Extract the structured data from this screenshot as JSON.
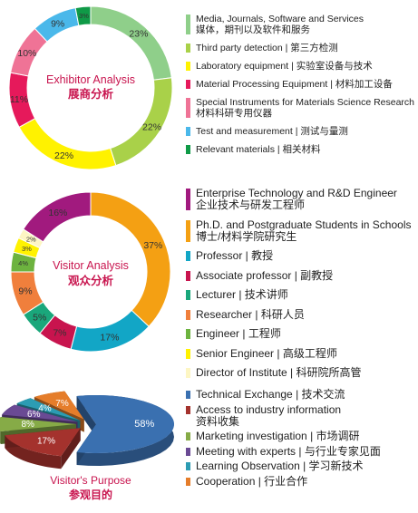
{
  "chart_data": [
    {
      "type": "pie",
      "variant": "donut",
      "title": "Exhibitor Analysis",
      "subtitle": "展商分析",
      "start": "top",
      "direction": "clockwise",
      "legend_position": "right",
      "series": [
        {
          "en": "Media, Journals, Software and Services",
          "zh": "媒体，期刊以及软件和服务",
          "value": 23,
          "label": "23%",
          "color": "#8fcf8a"
        },
        {
          "en": "Third party detection | 第三方检测",
          "zh": "",
          "value": 22,
          "label": "22%",
          "color": "#a9d149"
        },
        {
          "en": "Laboratory equipment | 实验室设备与技术",
          "zh": "",
          "value": 22,
          "label": "22%",
          "color": "#fff200"
        },
        {
          "en": "Material Processing Equipment | 材料加工设备",
          "zh": "",
          "value": 11,
          "label": "11%",
          "color": "#e6195b"
        },
        {
          "en": "Special Instruments for Materials Science Research",
          "zh": "材料科研专用仪器",
          "value": 10,
          "label": "10%",
          "color": "#ef7396"
        },
        {
          "en": "Test and measurement | 测试与量测",
          "zh": "",
          "value": 9,
          "label": "9%",
          "color": "#4ab8ea"
        },
        {
          "en": "Relevant materials | 相关材料",
          "zh": "",
          "value": 3,
          "label": "3%",
          "color": "#0f9a47"
        }
      ]
    },
    {
      "type": "pie",
      "variant": "donut",
      "title": "Visitor Analysis",
      "subtitle": "观众分析",
      "start": "top",
      "direction": "clockwise",
      "legend_position": "right",
      "series": [
        {
          "en": "Ph.D. and Postgraduate Students in Schools",
          "zh": "博士/材料学院研究生",
          "value": 37,
          "label": "37%",
          "color": "#f4a013"
        },
        {
          "en": "Professor | 教授",
          "zh": "",
          "value": 17,
          "label": "17%",
          "color": "#12a6c6"
        },
        {
          "en": "Associate professor | 副教授",
          "zh": "",
          "value": 7,
          "label": "7%",
          "color": "#c8144e"
        },
        {
          "en": "Lecturer | 技术讲师",
          "zh": "",
          "value": 5,
          "label": "5%",
          "color": "#1aa77b"
        },
        {
          "en": "Researcher | 科研人员",
          "zh": "",
          "value": 9,
          "label": "9%",
          "color": "#f07f3c"
        },
        {
          "en": "Engineer | 工程师",
          "zh": "",
          "value": 4,
          "label": "4%",
          "color": "#6db33f"
        },
        {
          "en": "Senior Engineer | 高级工程师",
          "zh": "",
          "value": 3,
          "label": "3%",
          "color": "#fff200"
        },
        {
          "en": "Director of Institute | 科研院所高管",
          "zh": "",
          "value": 2,
          "label": "2%",
          "color": "#fdf6c3"
        },
        {
          "en": "Enterprise Technology and R&D Engineer",
          "zh": "企业技术与研发工程师",
          "value": 16,
          "label": "16%",
          "color": "#a11a7e"
        }
      ],
      "legend_order": [
        8,
        0,
        1,
        2,
        3,
        4,
        5,
        6,
        7
      ]
    },
    {
      "type": "pie",
      "variant": "exploded-3d",
      "title": "Visitor's Purpose",
      "subtitle": "参观目的",
      "legend_position": "right",
      "series": [
        {
          "en": "Technical Exchange | 技术交流",
          "zh": "",
          "value": 58,
          "label": "58%",
          "color": "#3a70b0"
        },
        {
          "en": "Access to industry information",
          "zh": "资料收集",
          "value": 17,
          "label": "17%",
          "color": "#a4322d"
        },
        {
          "en": "Marketing investigation | 市场调研",
          "zh": "",
          "value": 8,
          "label": "8%",
          "color": "#86ab47"
        },
        {
          "en": "Meeting with experts | 与行业专家见面",
          "zh": "",
          "value": 6,
          "label": "6%",
          "color": "#6a4a94"
        },
        {
          "en": "Learning Observation | 学习新技术",
          "zh": "",
          "value": 4,
          "label": "4%",
          "color": "#2c9cb3"
        },
        {
          "en": "Cooperation | 行业合作",
          "zh": "",
          "value": 7,
          "label": "7%",
          "color": "#e57d2a"
        }
      ]
    }
  ]
}
